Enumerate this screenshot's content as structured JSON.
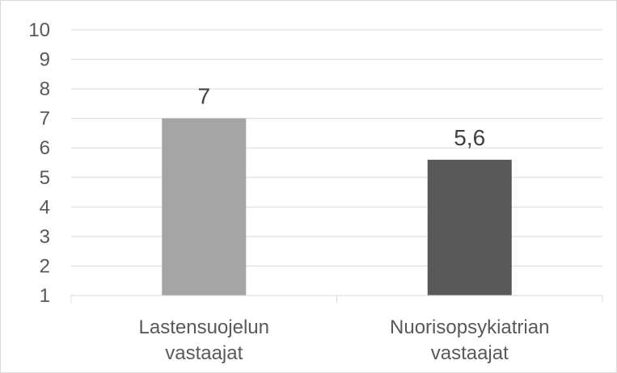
{
  "chart_data": {
    "type": "bar",
    "title": "",
    "xlabel": "",
    "ylabel": "",
    "categories": [
      [
        "Lastensuojelun",
        "vastaajat"
      ],
      [
        "Nuorisopsykiatrian",
        "vastaajat"
      ]
    ],
    "values": [
      7,
      5.6
    ],
    "data_labels": [
      "7",
      "5,6"
    ],
    "bar_colors": [
      "#a5a5a5",
      "#595959"
    ],
    "ylim": [
      1,
      10
    ],
    "yticks": [
      1,
      2,
      3,
      4,
      5,
      6,
      7,
      8,
      9,
      10
    ],
    "grid": true,
    "legend": "none"
  }
}
